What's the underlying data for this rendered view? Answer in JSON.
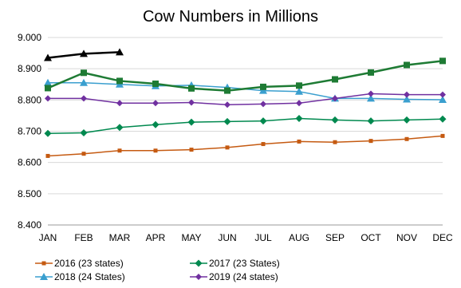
{
  "chart_data": {
    "type": "line",
    "title": "Cow Numbers in Millions",
    "xlabel": "",
    "ylabel": "",
    "categories": [
      "JAN",
      "FEB",
      "MAR",
      "APR",
      "MAY",
      "JUN",
      "JUL",
      "AUG",
      "SEP",
      "OCT",
      "NOV",
      "DEC"
    ],
    "ylim": [
      8.4,
      9.0
    ],
    "yticks": [
      "8.400",
      "8.500",
      "8.600",
      "8.700",
      "8.800",
      "8.900",
      "9.000"
    ],
    "grid": true,
    "legend_position": "bottom",
    "series": [
      {
        "name": "2016 (23 states)",
        "color": "#c55a11",
        "marker": "square-small",
        "values": [
          8.621,
          8.628,
          8.638,
          8.638,
          8.641,
          8.648,
          8.659,
          8.667,
          8.665,
          8.669,
          8.675,
          8.685
        ]
      },
      {
        "name": "2017 (23 States)",
        "color": "#00894f",
        "marker": "diamond",
        "values": [
          8.693,
          8.695,
          8.712,
          8.721,
          8.729,
          8.731,
          8.733,
          8.741,
          8.736,
          8.733,
          8.736,
          8.739
        ]
      },
      {
        "name": "2018 (24 States)",
        "color": "#3a9fcf",
        "marker": "triangle",
        "values": [
          8.855,
          8.855,
          8.85,
          8.845,
          8.847,
          8.84,
          8.83,
          8.827,
          8.805,
          8.805,
          8.802,
          8.801
        ]
      },
      {
        "name": "2019 (24 states)",
        "color": "#7030a0",
        "marker": "diamond-small",
        "values": [
          8.805,
          8.805,
          8.79,
          8.79,
          8.792,
          8.785,
          8.787,
          8.79,
          8.805,
          8.82,
          8.817,
          8.817
        ]
      },
      {
        "name": "",
        "color": "#1e7b34",
        "marker": "square",
        "values": [
          8.838,
          8.887,
          8.861,
          8.852,
          8.837,
          8.83,
          8.842,
          8.846,
          8.866,
          8.888,
          8.912,
          8.925
        ],
        "show_in_legend": false
      },
      {
        "name": "",
        "color": "#000000",
        "marker": "triangle",
        "values": [
          8.935,
          8.948,
          8.953,
          null,
          null,
          null,
          null,
          null,
          null,
          null,
          null,
          null
        ],
        "show_in_legend": false
      }
    ]
  }
}
